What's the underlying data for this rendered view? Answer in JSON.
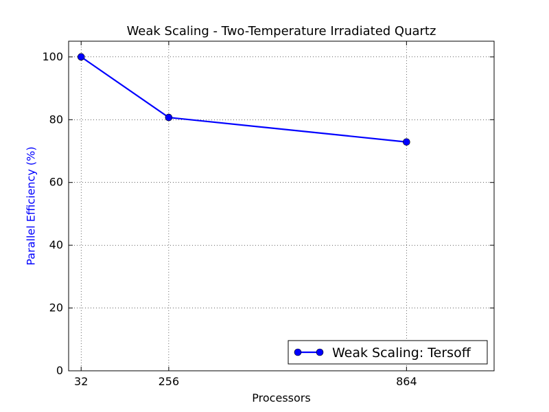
{
  "chart_data": {
    "type": "line",
    "title": "Weak Scaling - Two-Temperature Irradiated Quartz",
    "xlabel": "Processors",
    "ylabel": "Parallel Efficiency (%)",
    "x": [
      32,
      256,
      864
    ],
    "xticks": [
      "32",
      "256",
      "864"
    ],
    "xlim": [
      0,
      1088
    ],
    "ylim": [
      0,
      105
    ],
    "yticks": [
      0,
      20,
      40,
      60,
      80,
      100
    ],
    "grid": true,
    "legend_position": "lower-right",
    "series": [
      {
        "name": "Weak Scaling: Tersoff",
        "values": [
          100,
          80.7,
          72.9
        ],
        "color": "#0000ff",
        "marker": "circle"
      }
    ],
    "colors": {
      "ylabel": "#0000ff"
    }
  }
}
